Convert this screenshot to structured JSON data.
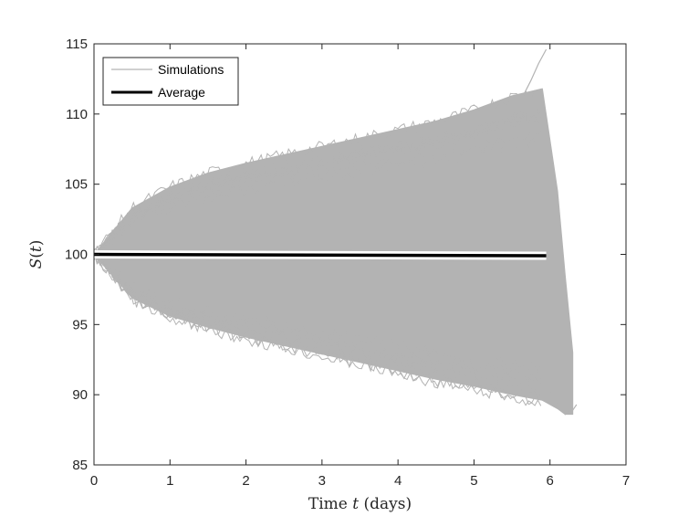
{
  "chart_data": {
    "type": "line",
    "title": "",
    "xlabel_prefix": "Time ",
    "xlabel_var": "t",
    "xlabel_suffix": " (days)",
    "ylabel_func": "S",
    "ylabel_open": "(",
    "ylabel_var": "t",
    "ylabel_close": ")",
    "xlim": [
      0,
      7
    ],
    "ylim": [
      85,
      115
    ],
    "xticks": [
      0,
      1,
      2,
      3,
      4,
      5,
      6,
      7
    ],
    "yticks": [
      85,
      90,
      95,
      100,
      105,
      110,
      115
    ],
    "grid": false,
    "legend_position": "top-left",
    "series": [
      {
        "name": "Simulations",
        "color": "#b3b3b3",
        "envelope": {
          "x": [
            0,
            0.5,
            1,
            1.5,
            2,
            2.5,
            3,
            3.5,
            4,
            4.5,
            5,
            5.5,
            5.9,
            6.1,
            6.2,
            6.3
          ],
          "upper": [
            100,
            103.3,
            104.8,
            105.8,
            106.5,
            107.1,
            107.7,
            108.3,
            108.9,
            109.5,
            110.3,
            111.3,
            111.8,
            104.5,
            98.5,
            93
          ],
          "lower": [
            100,
            96.9,
            95.6,
            94.8,
            94.1,
            93.5,
            92.9,
            92.3,
            91.7,
            91.1,
            90.6,
            90.0,
            89.6,
            89.0,
            88.6,
            88.6
          ]
        },
        "outlier_path": {
          "x": [
            5.6,
            5.75,
            5.85,
            5.95
          ],
          "y": [
            110.8,
            112.4,
            113.6,
            114.6
          ]
        },
        "outlier_tail": {
          "x": [
            6.0,
            6.1,
            6.2,
            6.3,
            6.35
          ],
          "y": [
            90.2,
            89.4,
            88.6,
            88.9,
            89.3
          ]
        }
      },
      {
        "name": "Average",
        "color": "#000000",
        "x": [
          0,
          5.95
        ],
        "y": [
          100.0,
          99.9
        ]
      }
    ]
  }
}
